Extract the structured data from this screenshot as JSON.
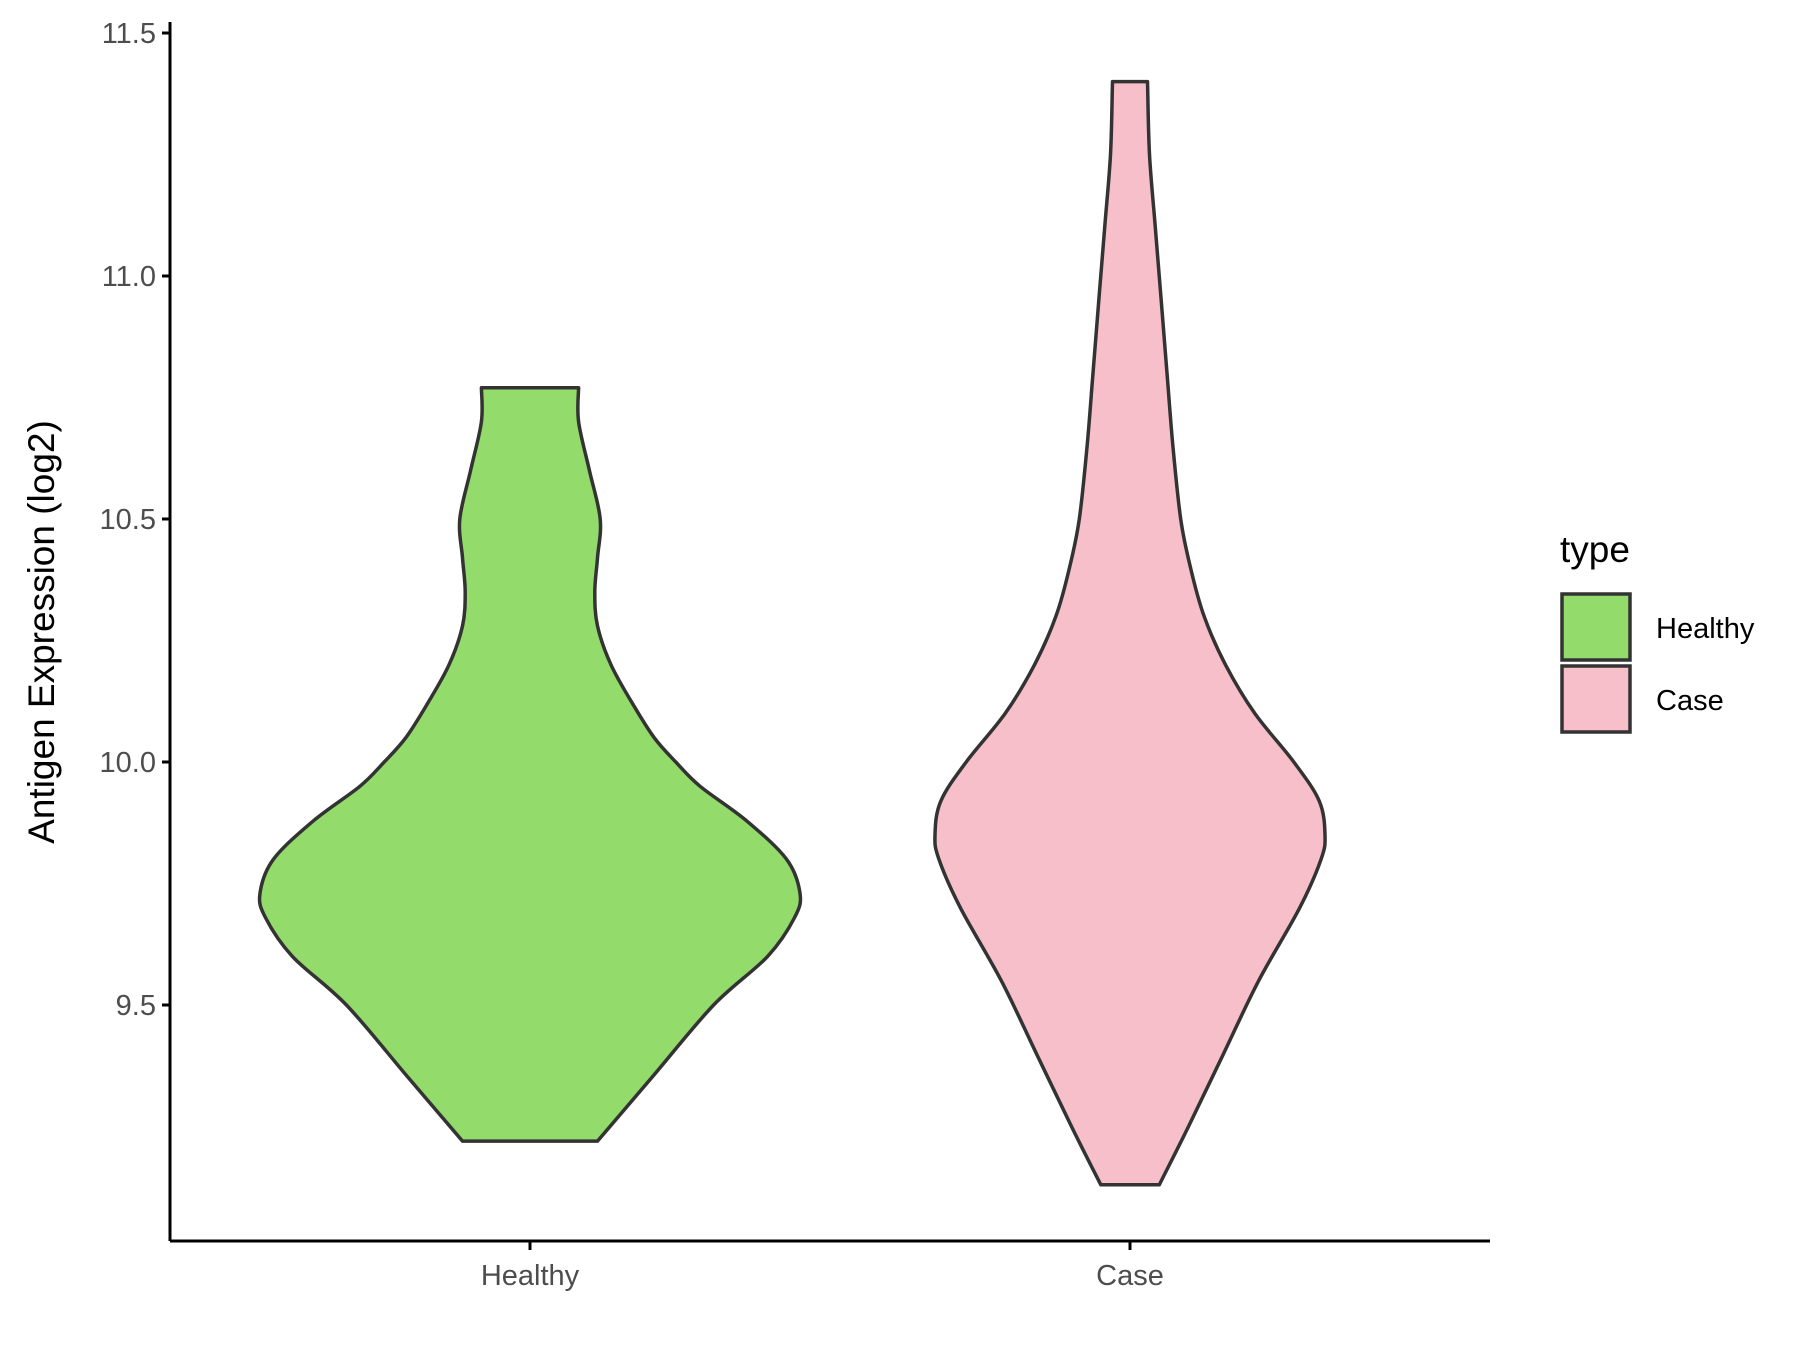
{
  "chart_data": {
    "type": "violin",
    "ylabel": "Antigen Expression (log2)",
    "xlabel": "",
    "ylim": [
      9.0,
      11.5
    ],
    "yticks": [
      "9.5",
      "10.0",
      "10.5",
      "11.0",
      "11.5"
    ],
    "categories": [
      "Healthy",
      "Case"
    ],
    "grid": false,
    "legend": {
      "title": "type",
      "position": "right",
      "entries": [
        {
          "label": "Healthy",
          "color": "#93DB6A"
        },
        {
          "label": "Case",
          "color": "#F7BFCA"
        }
      ]
    },
    "series": [
      {
        "name": "Healthy",
        "color": "#93DB6A",
        "min": 9.22,
        "max": 10.77,
        "profile": [
          [
            9.22,
            0.25
          ],
          [
            9.35,
            0.45
          ],
          [
            9.5,
            0.68
          ],
          [
            9.6,
            0.88
          ],
          [
            9.68,
            0.98
          ],
          [
            9.73,
            1.0
          ],
          [
            9.8,
            0.95
          ],
          [
            9.88,
            0.8
          ],
          [
            9.95,
            0.63
          ],
          [
            10.0,
            0.54
          ],
          [
            10.05,
            0.46
          ],
          [
            10.12,
            0.38
          ],
          [
            10.2,
            0.3
          ],
          [
            10.28,
            0.25
          ],
          [
            10.35,
            0.24
          ],
          [
            10.42,
            0.25
          ],
          [
            10.5,
            0.26
          ],
          [
            10.6,
            0.22
          ],
          [
            10.7,
            0.18
          ],
          [
            10.77,
            0.18
          ]
        ]
      },
      {
        "name": "Case",
        "color": "#F7BFCA",
        "min": 9.13,
        "max": 11.4,
        "profile": [
          [
            9.13,
            0.15
          ],
          [
            9.25,
            0.3
          ],
          [
            9.4,
            0.48
          ],
          [
            9.55,
            0.66
          ],
          [
            9.7,
            0.87
          ],
          [
            9.8,
            0.98
          ],
          [
            9.85,
            1.0
          ],
          [
            9.92,
            0.97
          ],
          [
            10.0,
            0.84
          ],
          [
            10.1,
            0.64
          ],
          [
            10.2,
            0.49
          ],
          [
            10.3,
            0.38
          ],
          [
            10.4,
            0.31
          ],
          [
            10.5,
            0.26
          ],
          [
            10.65,
            0.22
          ],
          [
            10.8,
            0.19
          ],
          [
            10.95,
            0.16
          ],
          [
            11.1,
            0.13
          ],
          [
            11.25,
            0.1
          ],
          [
            11.4,
            0.09
          ]
        ]
      }
    ]
  }
}
